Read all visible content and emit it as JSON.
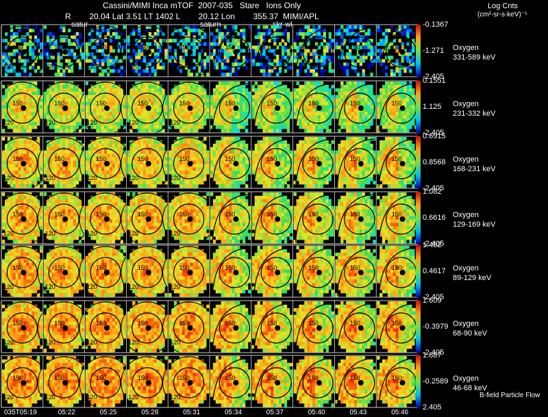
{
  "header": {
    "title": "Cassini/MIMI Inca mTOF  2007-035   Stare   Ions Only",
    "meta": "R        20.04 Lat 3.51 LT 1402 L        20.12 Lon        355.37  MIMI/APL",
    "units_line1": "Log Cnts",
    "units_line2": "(cm²-sr-s-keV)⁻¹"
  },
  "top_tags": [
    "satur",
    "saturn",
    "skr-wl"
  ],
  "rows": [
    {
      "species": "Oxygen",
      "energy": "331-589 keV",
      "max": "-0.1367",
      "mid": "-1.271",
      "min": "-2.405"
    },
    {
      "species": "Oxygen",
      "energy": "231-332 keV",
      "max": "0.1551",
      "mid": "1.125",
      "min": "-2.405"
    },
    {
      "species": "Oxygen",
      "energy": "168-231 keV",
      "max": "0.6915",
      "mid": "0.8568",
      "min": "-2.405"
    },
    {
      "species": "Oxygen",
      "energy": "129-169 keV",
      "max": "1.082",
      "mid": "0.6616",
      "min": "-2.405"
    },
    {
      "species": "Oxygen",
      "energy": "89-129 keV",
      "max": "1.482",
      "mid": "0.4617",
      "min": "-2.405"
    },
    {
      "species": "Oxygen",
      "energy": "68-90 keV",
      "max": "1.609",
      "mid": "-0.3979",
      "min": "-2.405"
    },
    {
      "species": "Oxygen",
      "energy": "46-68 keV",
      "max": "1.887",
      "mid": "-0.2589",
      "min": "2.405"
    }
  ],
  "times": [
    "035T05:19",
    "05:22",
    "05:25",
    "05:28",
    "05:31",
    "05:34",
    "05:37",
    "05:40",
    "05:43",
    "05:46"
  ],
  "ring_labels": [
    "150",
    "120",
    "150"
  ],
  "footnote": "B-field Particle Flow",
  "chart_data": {
    "type": "heatmap",
    "title": "Cassini/MIMI Inca mTOF 2007-035 Stare Ions Only",
    "colorbar_label": "Log Cnts (cm²-sr-s-keV)⁻¹",
    "species": "Oxygen",
    "energy_channels": [
      "331-589 keV",
      "231-332 keV",
      "168-231 keV",
      "129-169 keV",
      "89-129 keV",
      "68-90 keV",
      "46-68 keV"
    ],
    "colorbar_max": [
      -0.1367,
      0.1551,
      0.6915,
      1.082,
      1.482,
      1.609,
      1.887
    ],
    "colorbar_mid": [
      -1.271,
      1.125,
      0.8568,
      0.6616,
      0.4617,
      -0.3979,
      -0.2589
    ],
    "colorbar_min": [
      -2.405,
      -2.405,
      -2.405,
      -2.405,
      -2.405,
      -2.405,
      2.405
    ],
    "times": [
      "035T05:19",
      "05:22",
      "05:25",
      "05:28",
      "05:31",
      "05:34",
      "05:37",
      "05:40",
      "05:43",
      "05:46"
    ],
    "ring_labels": [
      "120",
      "150"
    ]
  },
  "colors": {
    "background": "#000000",
    "panel_border": "#000000",
    "frame": "#ffffff"
  }
}
